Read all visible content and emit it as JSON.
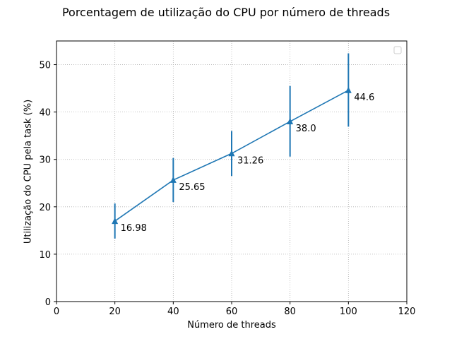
{
  "chart_data": {
    "type": "line",
    "title": "Porcentagem de utilização do CPU por número de threads",
    "xlabel": "Número de threads",
    "ylabel": "Utilização do CPU pela task (%)",
    "xlim": [
      0,
      120
    ],
    "ylim": [
      0,
      55
    ],
    "xticks": [
      0,
      20,
      40,
      60,
      80,
      100,
      120
    ],
    "yticks": [
      0,
      10,
      20,
      30,
      40,
      50
    ],
    "grid": true,
    "legend": "top-right",
    "marker": "triangle",
    "color": "#1f77b4",
    "series": [
      {
        "x": [
          20,
          40,
          60,
          80,
          100
        ],
        "y": [
          16.98,
          25.65,
          31.26,
          38.0,
          44.6
        ],
        "error_low": [
          13.3,
          21.0,
          26.5,
          30.6,
          36.9
        ],
        "error_high": [
          20.7,
          30.3,
          36.0,
          45.5,
          52.4
        ],
        "labels": [
          "16.98",
          "25.65",
          "31.26",
          "38.0",
          "44.6"
        ]
      }
    ]
  }
}
